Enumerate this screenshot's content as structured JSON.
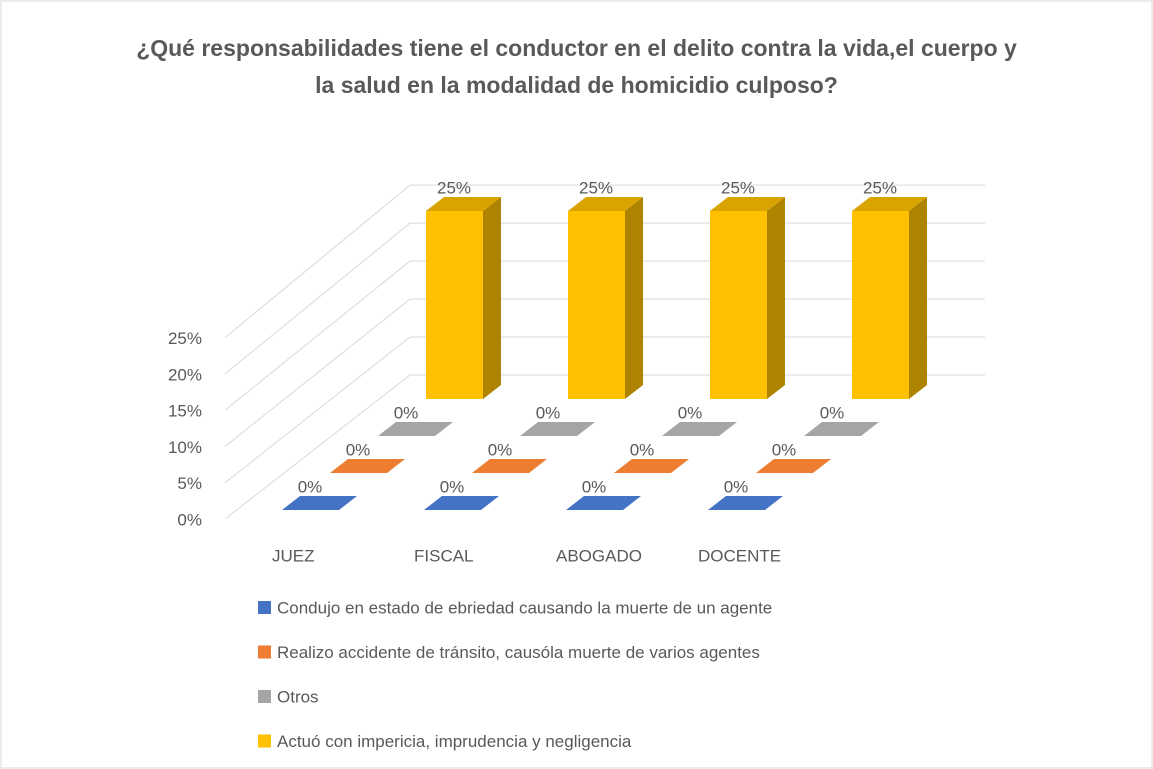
{
  "chart_data": {
    "type": "bar3d",
    "title": "¿Qué responsabilidades tiene el conductor en el delito contra la vida,el cuerpo y la salud en la modalidad de homicidio culposo?",
    "categories": [
      "JUEZ",
      "FISCAL",
      "ABOGADO",
      "DOCENTE"
    ],
    "series": [
      {
        "name": "Condujo en estado de ebriedad causando la muerte de un agente",
        "color": "#4472c4",
        "values": [
          0,
          0,
          0,
          0
        ],
        "value_labels": [
          "0%",
          "0%",
          "0%",
          "0%"
        ]
      },
      {
        "name": "Realizo accidente de tránsito, causóla muerte de varios agentes",
        "color": "#ed7d31",
        "values": [
          0,
          0,
          0,
          0
        ],
        "value_labels": [
          "0%",
          "0%",
          "0%",
          "0%"
        ]
      },
      {
        "name": "Otros",
        "color": "#a5a5a5",
        "values": [
          0,
          0,
          0,
          0
        ],
        "value_labels": [
          "0%",
          "0%",
          "0%",
          "0%"
        ]
      },
      {
        "name": "Actuó con impericia, imprudencia y negligencia",
        "color": "#ffc000",
        "values": [
          25,
          25,
          25,
          25
        ],
        "value_labels": [
          "25%",
          "25%",
          "25%",
          "25%"
        ]
      }
    ],
    "ylim": [
      0,
      25
    ],
    "yticks": [
      {
        "value": 0,
        "label": "0%"
      },
      {
        "value": 5,
        "label": "5%"
      },
      {
        "value": 10,
        "label": "10%"
      },
      {
        "value": 15,
        "label": "15%"
      },
      {
        "value": 20,
        "label": "20%"
      },
      {
        "value": 25,
        "label": "25%"
      }
    ],
    "grid": true
  }
}
